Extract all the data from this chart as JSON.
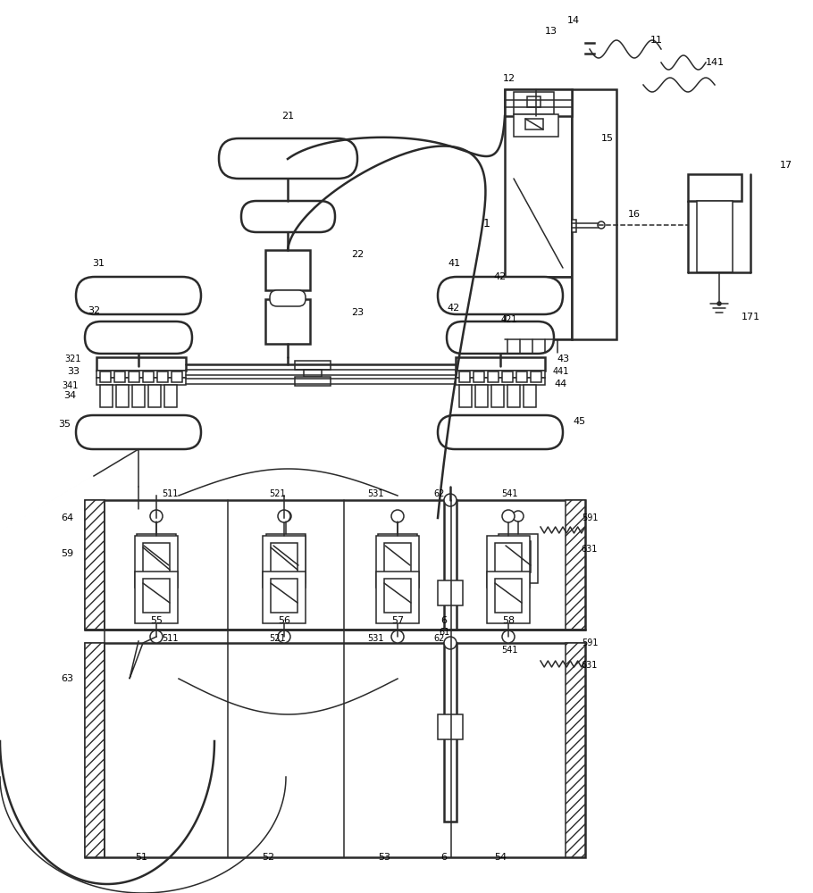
{
  "bg": "#ffffff",
  "lc": "#2a2a2a",
  "lw": 1.1,
  "lw2": 1.8,
  "lw3": 2.5
}
